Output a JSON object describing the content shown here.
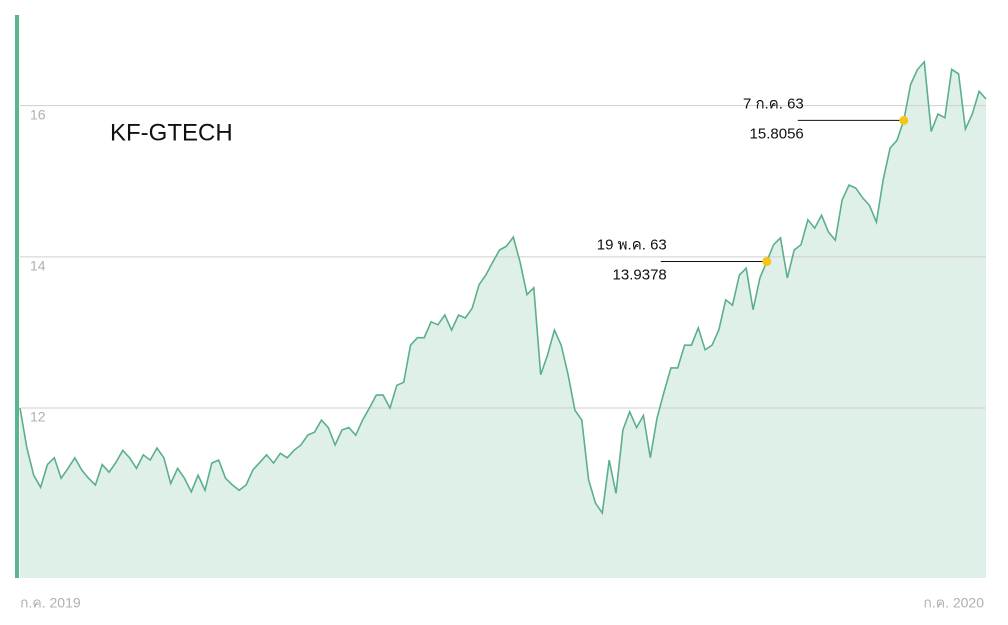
{
  "chart_data": {
    "type": "area",
    "title": "KF-GTECH",
    "x_labels": [
      "ก.ค. 2019",
      "ก.ค. 2020"
    ],
    "ylim": [
      9.75,
      17.2
    ],
    "yticks": [
      12,
      14,
      16
    ],
    "grid": true,
    "series": [
      {
        "color": "#5bb08a",
        "fill": "#dff0e8",
        "values": [
          12.0,
          11.47,
          11.11,
          10.95,
          11.25,
          11.34,
          11.07,
          11.2,
          11.34,
          11.18,
          11.07,
          10.98,
          11.25,
          11.15,
          11.28,
          11.44,
          11.34,
          11.2,
          11.38,
          11.31,
          11.47,
          11.34,
          11.0,
          11.2,
          11.07,
          10.89,
          11.11,
          10.91,
          11.27,
          11.31,
          11.07,
          10.98,
          10.91,
          10.98,
          11.18,
          11.28,
          11.38,
          11.27,
          11.4,
          11.34,
          11.44,
          11.51,
          11.64,
          11.68,
          11.84,
          11.74,
          11.51,
          11.71,
          11.74,
          11.64,
          11.84,
          12.0,
          12.17,
          12.17,
          12.0,
          12.3,
          12.34,
          12.83,
          12.93,
          12.93,
          13.14,
          13.1,
          13.23,
          13.03,
          13.23,
          13.19,
          13.32,
          13.63,
          13.76,
          13.93,
          14.09,
          14.14,
          14.26,
          13.93,
          13.5,
          13.59,
          12.44,
          12.7,
          13.03,
          12.83,
          12.44,
          11.97,
          11.84,
          11.05,
          10.74,
          10.61,
          11.31,
          10.87,
          11.71,
          11.95,
          11.74,
          11.9,
          11.34,
          11.87,
          12.21,
          12.53,
          12.53,
          12.83,
          12.83,
          13.06,
          12.77,
          12.83,
          13.03,
          13.43,
          13.36,
          13.76,
          13.85,
          13.3,
          13.72,
          13.9378,
          14.16,
          14.25,
          13.72,
          14.09,
          14.16,
          14.49,
          14.38,
          14.55,
          14.33,
          14.22,
          14.75,
          14.95,
          14.91,
          14.78,
          14.68,
          14.46,
          15.02,
          15.44,
          15.54,
          15.8056,
          16.28,
          16.48,
          16.58,
          15.66,
          15.89,
          15.84,
          16.48,
          16.42,
          15.69,
          15.89,
          16.19,
          16.09
        ]
      }
    ],
    "annotations": [
      {
        "label": "7 ก.ค. 63",
        "value": 15.8056
      },
      {
        "label": "19 พ.ค. 63",
        "value": 13.9378
      }
    ],
    "marker_color": "#f5c518"
  }
}
